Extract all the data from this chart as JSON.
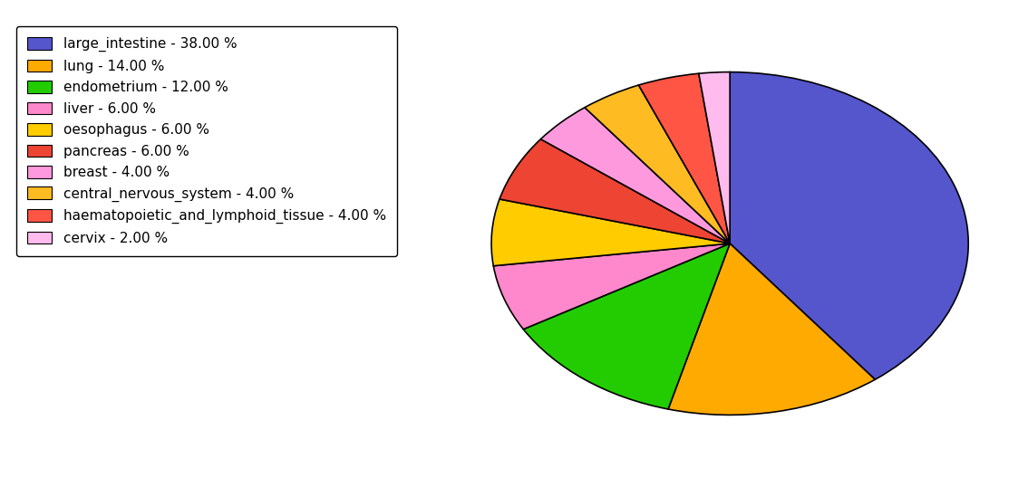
{
  "labels": [
    "large_intestine",
    "lung",
    "endometrium",
    "liver",
    "oesophagus",
    "pancreas",
    "breast",
    "central_nervous_system",
    "haematopoietic_and_lymphoid_tissue",
    "cervix"
  ],
  "values": [
    38,
    14,
    12,
    6,
    6,
    6,
    4,
    4,
    4,
    2
  ],
  "colors": [
    "#5555cc",
    "#ffaa00",
    "#22cc00",
    "#ff88cc",
    "#ffcc00",
    "#ee4433",
    "#ff99dd",
    "#ffbb22",
    "#ff5544",
    "#ffbbee"
  ],
  "legend_labels": [
    "large_intestine - 38.00 %",
    "lung - 14.00 %",
    "endometrium - 12.00 %",
    "liver - 6.00 %",
    "oesophagus - 6.00 %",
    "pancreas - 6.00 %",
    "breast - 4.00 %",
    "central_nervous_system - 4.00 %",
    "haematopoietic_and_lymphoid_tissue - 4.00 %",
    "cervix - 2.00 %"
  ],
  "startangle": 90,
  "counterclock": false,
  "aspect_ratio": 0.72,
  "figsize": [
    11.34,
    5.38
  ],
  "dpi": 100,
  "legend_fontsize": 11,
  "edge_color": "black",
  "edge_linewidth": 1.2
}
